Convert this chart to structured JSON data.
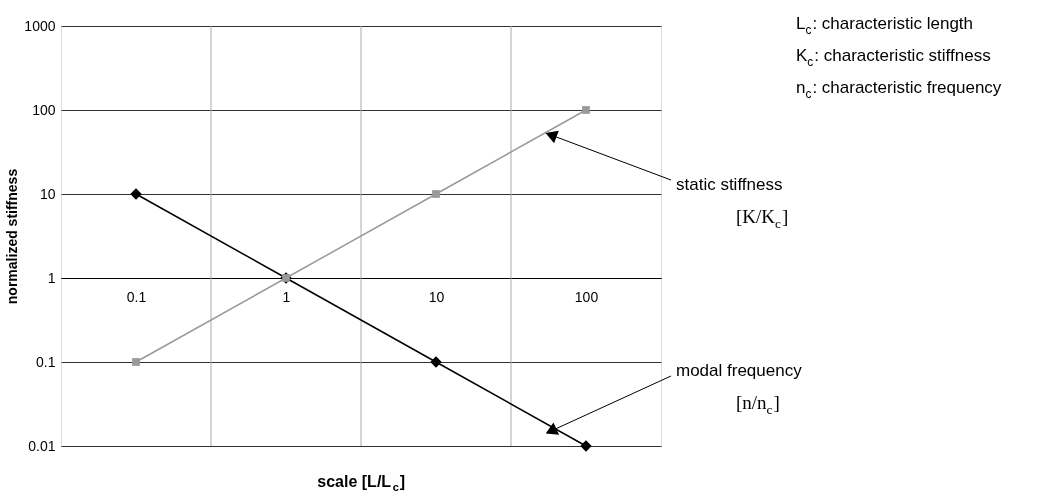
{
  "chart_data": {
    "type": "line",
    "xlabel": "scale [L/L$_{c}$]",
    "ylabel": "normalized stiffness",
    "categories": [
      "0.1",
      "1",
      "10",
      "100"
    ],
    "ylim": [
      0.01,
      1000
    ],
    "yticks": [
      0.01,
      0.1,
      1,
      10,
      100,
      1000
    ],
    "log": "y",
    "grid": true,
    "series": [
      {
        "name": "modal frequency",
        "color": "#000000",
        "marker": "diamond",
        "values": [
          10,
          1,
          0.1,
          0.01
        ]
      },
      {
        "name": "static stiffness",
        "color": "#999999",
        "marker": "square",
        "values": [
          0.1,
          1,
          10,
          100
        ]
      }
    ],
    "annotations": [
      "L$_{c}$: characteristic length",
      "K$_{c}$: characteristic stiffness",
      "n$_{c}$: characteristic frequency",
      "[n/n$_{c}$]",
      "[K/K$_{c}$]"
    ]
  }
}
